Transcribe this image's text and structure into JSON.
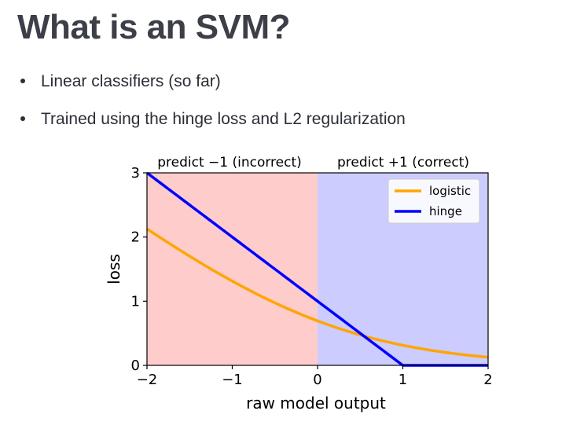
{
  "slide": {
    "title": "What is an SVM?",
    "bullets": [
      "Linear classifiers (so far)",
      "Trained using the hinge loss and L2 regularization"
    ]
  },
  "chart_data": {
    "type": "line",
    "xlabel": "raw model output",
    "ylabel": "loss",
    "xlim": [
      -2,
      2
    ],
    "ylim": [
      0,
      3
    ],
    "xticks": [
      -2,
      -1,
      0,
      1,
      2
    ],
    "xtick_labels": [
      "−2",
      "−1",
      "0",
      "1",
      "2"
    ],
    "yticks": [
      0,
      1,
      2,
      3
    ],
    "ytick_labels": [
      "0",
      "1",
      "2",
      "3"
    ],
    "regions": [
      {
        "label": "predict −1 (incorrect)",
        "x0": -2,
        "x1": 0,
        "color": "#ffcccc"
      },
      {
        "label": "predict +1 (correct)",
        "x0": 0,
        "x1": 2,
        "color": "#ccccff"
      }
    ],
    "series": [
      {
        "name": "logistic",
        "color": "#ffa500",
        "function": "log(1+exp(-x))"
      },
      {
        "name": "hinge",
        "color": "#0000ff",
        "function": "max(0,1-x)"
      }
    ],
    "legend": "top-right"
  }
}
